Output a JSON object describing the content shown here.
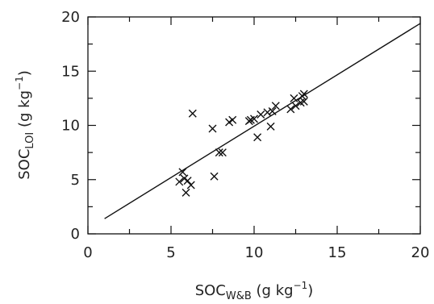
{
  "chart_data": {
    "type": "scatter",
    "title": "",
    "xlabel": {
      "base": "SOC",
      "subscript": "W&B",
      "units_start": " (g kg",
      "superscript": "−1",
      "units_end": ")"
    },
    "ylabel": {
      "base": "SOC",
      "subscript": "LOI",
      "units_start": " (g kg",
      "superscript": "−1",
      "units_end": ")"
    },
    "xlim": [
      0,
      20
    ],
    "ylim": [
      0,
      20
    ],
    "xticks": [
      "0",
      "5",
      "10",
      "15",
      "20"
    ],
    "yticks": [
      "0",
      "5",
      "10",
      "15",
      "20"
    ],
    "grid": false,
    "legend": "none",
    "marker": "x",
    "points": [
      {
        "x": 5.5,
        "y": 4.8
      },
      {
        "x": 5.7,
        "y": 5.7
      },
      {
        "x": 5.8,
        "y": 5.1
      },
      {
        "x": 5.9,
        "y": 3.8
      },
      {
        "x": 6.0,
        "y": 4.9
      },
      {
        "x": 6.2,
        "y": 4.5
      },
      {
        "x": 6.3,
        "y": 11.1
      },
      {
        "x": 7.5,
        "y": 9.7
      },
      {
        "x": 7.6,
        "y": 5.3
      },
      {
        "x": 7.9,
        "y": 7.5
      },
      {
        "x": 8.1,
        "y": 7.5
      },
      {
        "x": 8.5,
        "y": 10.3
      },
      {
        "x": 8.7,
        "y": 10.5
      },
      {
        "x": 9.7,
        "y": 10.4
      },
      {
        "x": 9.8,
        "y": 10.5
      },
      {
        "x": 10.0,
        "y": 10.6
      },
      {
        "x": 10.2,
        "y": 8.9
      },
      {
        "x": 10.4,
        "y": 11.0
      },
      {
        "x": 10.8,
        "y": 11.2
      },
      {
        "x": 11.0,
        "y": 9.9
      },
      {
        "x": 11.1,
        "y": 11.3
      },
      {
        "x": 11.3,
        "y": 11.8
      },
      {
        "x": 12.2,
        "y": 11.5
      },
      {
        "x": 12.4,
        "y": 12.5
      },
      {
        "x": 12.5,
        "y": 11.8
      },
      {
        "x": 12.8,
        "y": 12.1
      },
      {
        "x": 12.9,
        "y": 12.7
      },
      {
        "x": 13.0,
        "y": 12.2
      },
      {
        "x": 13.0,
        "y": 12.9
      }
    ],
    "fit_line": {
      "x": [
        1,
        20
      ],
      "y": [
        1.4,
        19.4
      ]
    }
  }
}
